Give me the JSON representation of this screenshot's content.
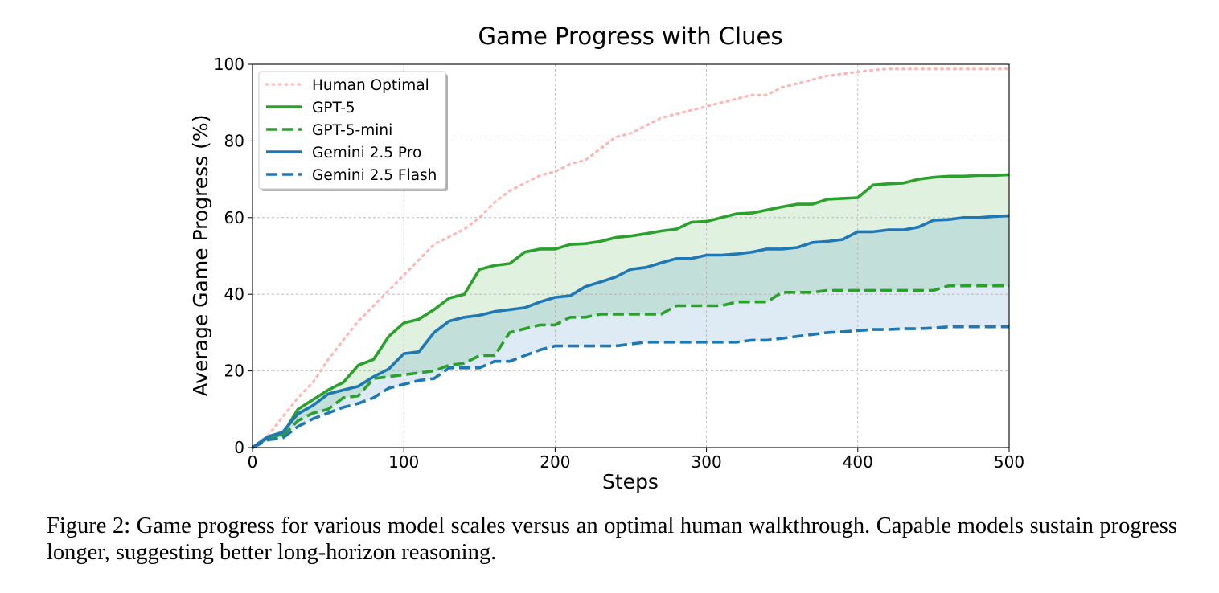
{
  "chart_data": {
    "type": "line",
    "title": "Game Progress with Clues",
    "xlabel": "Steps",
    "ylabel": "Average Game Progress (%)",
    "xlim": [
      0,
      500
    ],
    "ylim": [
      0,
      100
    ],
    "xticks": [
      0,
      100,
      200,
      300,
      400,
      500
    ],
    "yticks": [
      0,
      20,
      40,
      60,
      80,
      100
    ],
    "grid": true,
    "legend_position": "top-left",
    "x": [
      0,
      10,
      20,
      30,
      40,
      50,
      60,
      70,
      80,
      90,
      100,
      110,
      120,
      130,
      140,
      150,
      160,
      170,
      180,
      190,
      200,
      210,
      220,
      230,
      240,
      250,
      260,
      270,
      280,
      290,
      300,
      310,
      320,
      330,
      340,
      350,
      360,
      370,
      380,
      390,
      400,
      410,
      420,
      430,
      440,
      450,
      460,
      470,
      480,
      490,
      500
    ],
    "series": [
      {
        "name": "Human Optimal",
        "color": "#ffb6b6",
        "style": "dotted",
        "values": [
          0,
          3,
          8,
          13,
          17,
          23,
          28,
          33,
          37,
          41,
          45,
          49,
          53,
          55,
          57,
          60,
          64,
          67,
          69,
          71,
          72,
          74,
          75,
          78,
          81,
          82,
          84,
          86,
          87,
          88,
          89,
          90,
          91,
          92,
          92,
          94,
          95,
          96,
          97,
          97.5,
          98,
          98.5,
          98.8,
          98.8,
          98.8,
          98.8,
          98.8,
          98.8,
          98.8,
          98.8,
          98.8
        ]
      },
      {
        "name": "GPT-5",
        "color": "#2ca02c",
        "style": "solid",
        "values": [
          0,
          2.5,
          3.5,
          10,
          12.5,
          15,
          17,
          21.5,
          23,
          29,
          32.5,
          33.5,
          36,
          39,
          40,
          46.5,
          47.5,
          48,
          51,
          51.8,
          51.8,
          53,
          53.2,
          53.8,
          54.8,
          55.2,
          55.8,
          56.5,
          57,
          58.8,
          59,
          60,
          61,
          61.2,
          62,
          62.8,
          63.5,
          63.5,
          64.8,
          65,
          65.2,
          68.5,
          68.8,
          69,
          70,
          70.5,
          70.8,
          70.8,
          71,
          71,
          71.2
        ]
      },
      {
        "name": "GPT-5-mini",
        "color": "#2ca02c",
        "style": "dashed",
        "values": [
          0,
          2,
          3,
          7,
          9,
          10,
          13,
          13.5,
          18,
          18.5,
          19,
          19.5,
          20,
          21.5,
          22,
          24,
          24,
          30,
          31,
          32,
          32,
          34,
          34,
          34.8,
          34.8,
          34.8,
          34.8,
          34.8,
          37,
          37,
          37,
          37,
          38,
          38,
          38,
          40.5,
          40.5,
          40.5,
          41,
          41,
          41,
          41,
          41,
          41,
          41,
          41,
          42.2,
          42.2,
          42.2,
          42.2,
          42.2
        ]
      },
      {
        "name": "Gemini 2.5 Pro",
        "color": "#1f77b4",
        "style": "solid",
        "values": [
          0,
          2.8,
          4,
          8.8,
          11,
          14,
          15,
          16,
          18.5,
          20.5,
          24.5,
          25,
          30,
          33,
          34,
          34.5,
          35.5,
          36,
          36.5,
          38,
          39.2,
          39.6,
          42,
          43.2,
          44.5,
          46.5,
          47,
          48.2,
          49.3,
          49.3,
          50.2,
          50.2,
          50.5,
          51,
          51.8,
          51.8,
          52.2,
          53.5,
          53.8,
          54.3,
          56.3,
          56.3,
          56.8,
          56.8,
          57.5,
          59.3,
          59.5,
          60,
          60,
          60.3,
          60.5
        ]
      },
      {
        "name": "Gemini 2.5 Flash",
        "color": "#1f77b4",
        "style": "dashed",
        "values": [
          0,
          2,
          2.5,
          5.5,
          7.5,
          9,
          10.5,
          11.5,
          13,
          15.5,
          16.5,
          17.5,
          18,
          20.8,
          20.8,
          20.8,
          22.5,
          22.5,
          24,
          25.5,
          26.5,
          26.5,
          26.5,
          26.5,
          26.5,
          27,
          27.5,
          27.5,
          27.5,
          27.5,
          27.5,
          27.5,
          27.5,
          28,
          28,
          28.5,
          29,
          29.5,
          30,
          30.2,
          30.5,
          30.8,
          30.8,
          31,
          31,
          31.2,
          31.5,
          31.5,
          31.5,
          31.5,
          31.5
        ]
      }
    ],
    "fills": [
      {
        "between": [
          "GPT-5",
          "GPT-5-mini"
        ],
        "color": "#2ca02c",
        "opacity": 0.15
      },
      {
        "between": [
          "Gemini 2.5 Pro",
          "Gemini 2.5 Flash"
        ],
        "color": "#1f77b4",
        "opacity": 0.15
      }
    ]
  },
  "caption": "Figure 2: Game progress for various model scales versus an optimal human walkthrough. Capable models sustain progress longer, suggesting better long-horizon reasoning."
}
